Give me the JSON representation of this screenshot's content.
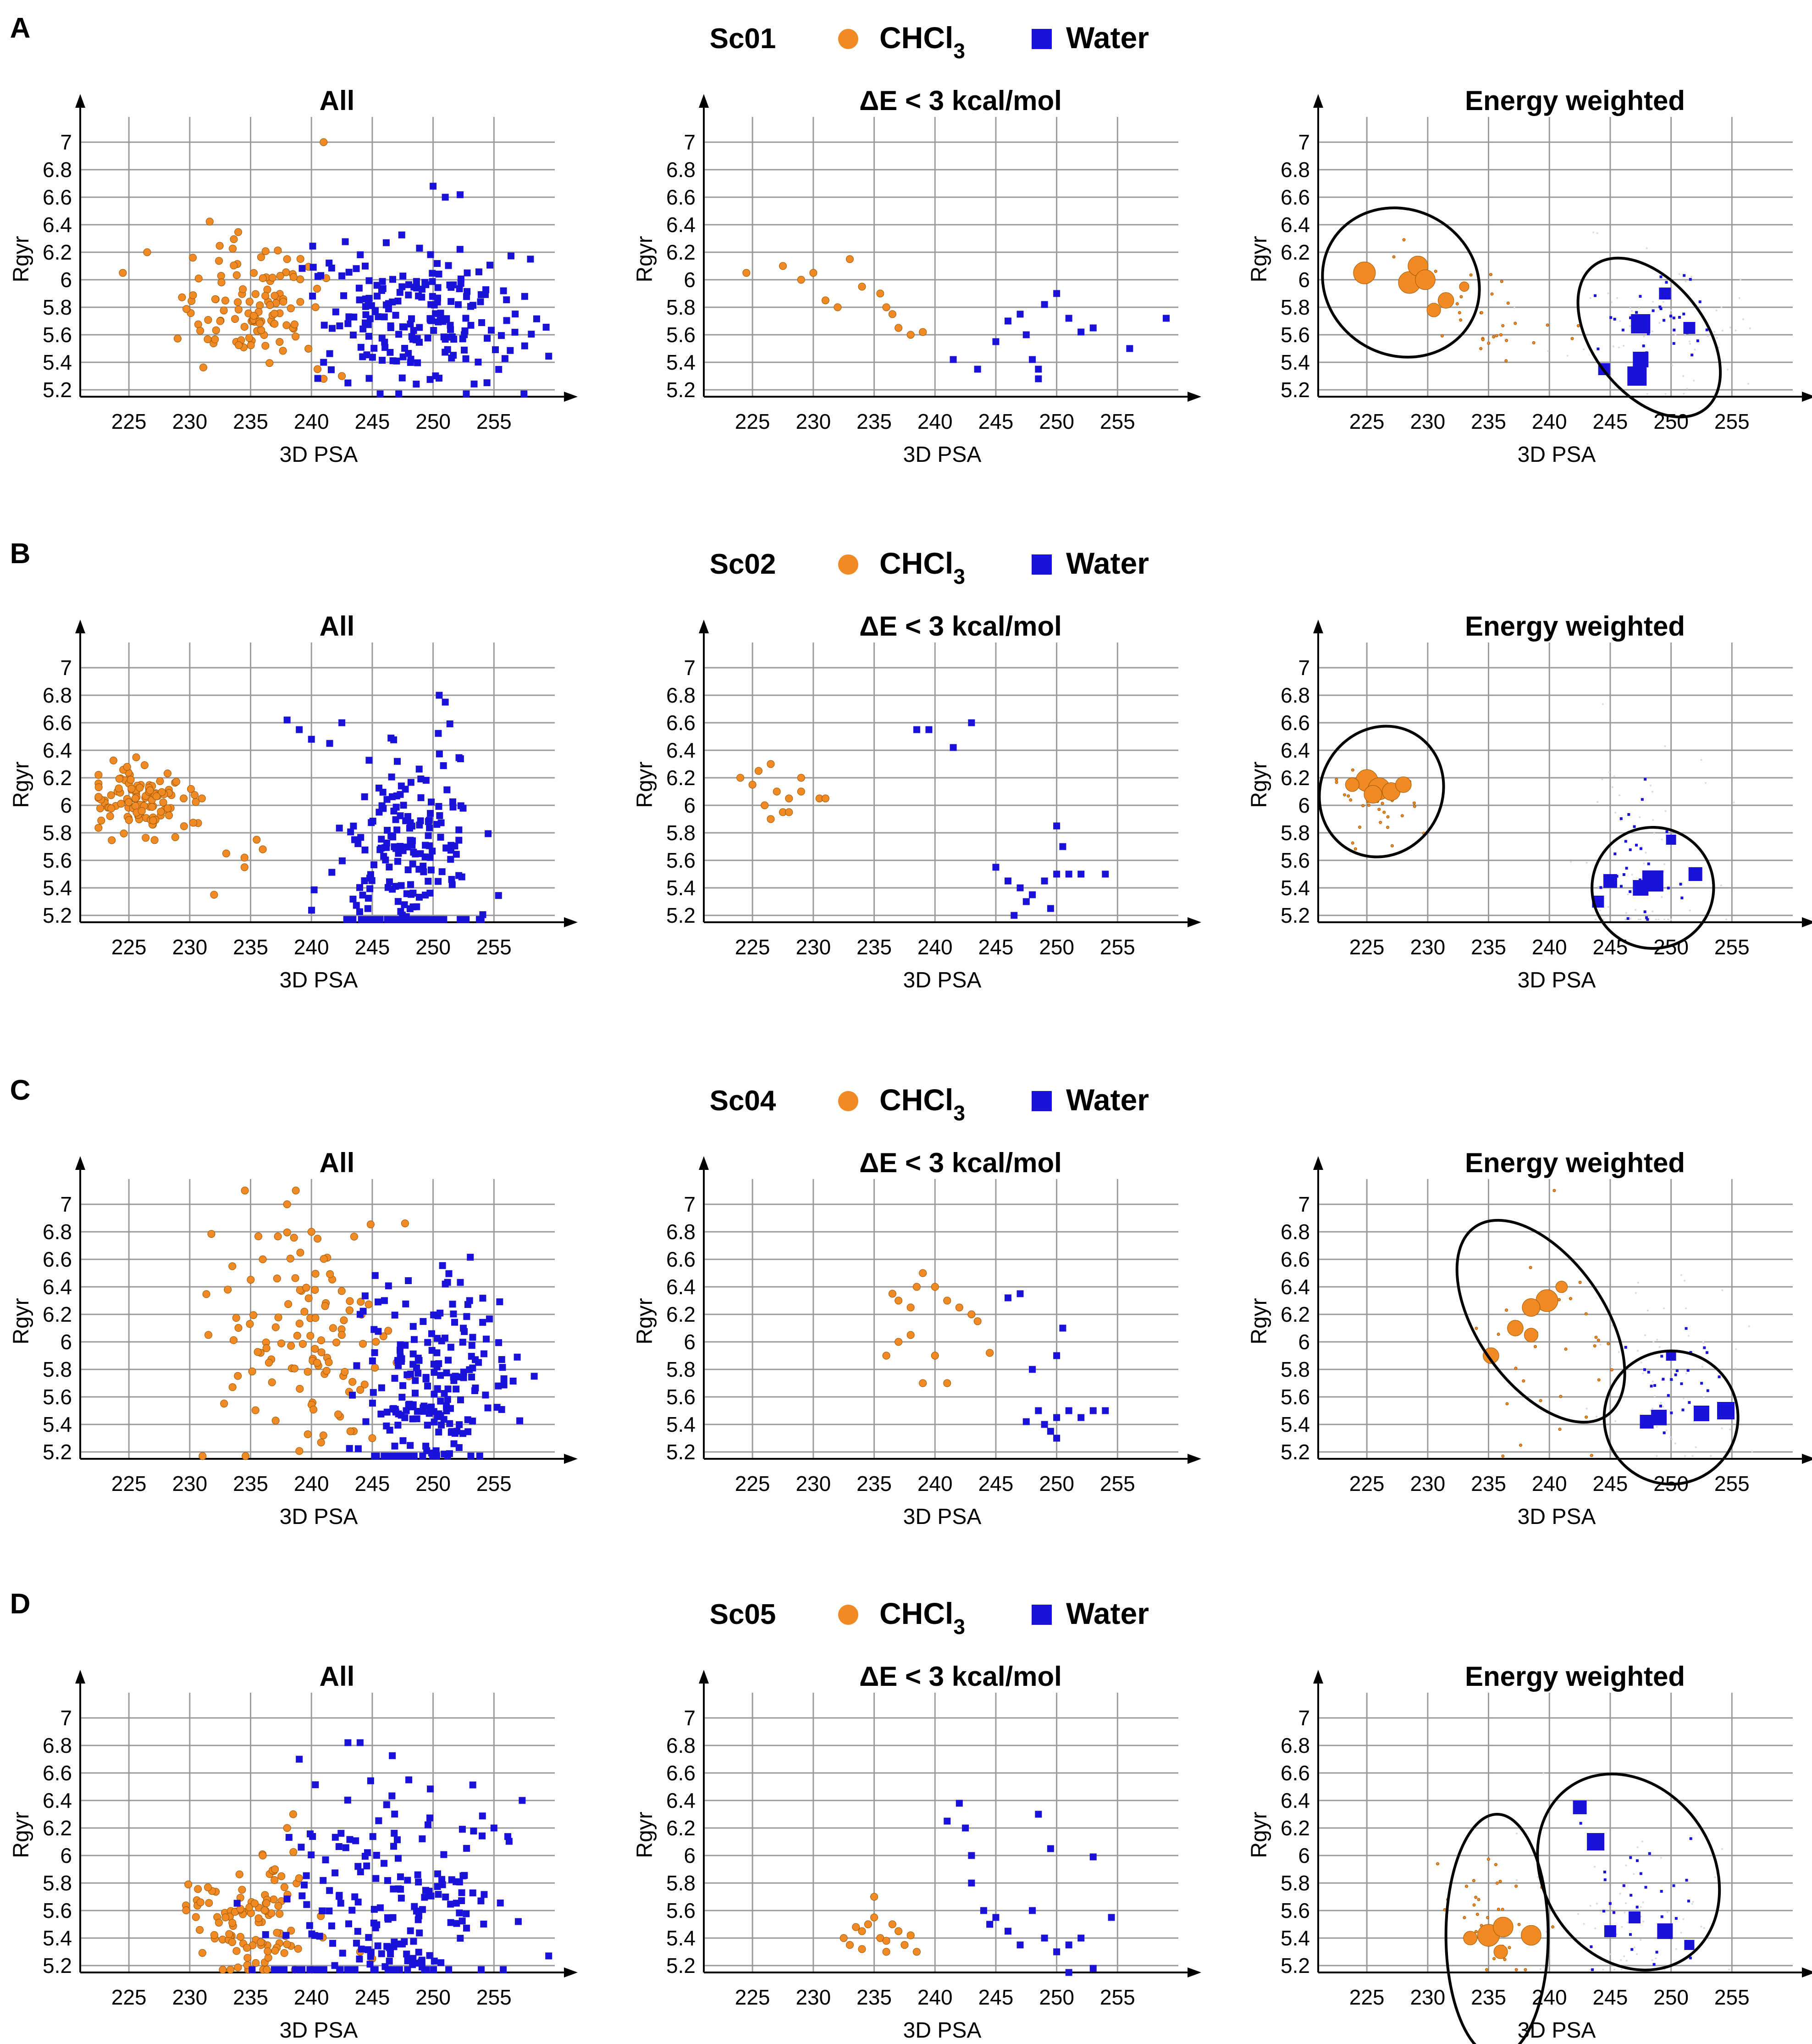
{
  "colors": {
    "chcl3": "#f08a24",
    "water": "#1a12d8",
    "chcl3_edge": "#9c5400",
    "grid": "#9a9a9a",
    "axis": "#000000"
  },
  "legend": {
    "chcl3_base": "CHCl",
    "chcl3_sub": "3",
    "water": "Water"
  },
  "axis_labels": {
    "x": "3D PSA",
    "y": "Rgyr"
  },
  "panel_titles": [
    "All",
    "ΔE < 3 kcal/mol",
    "Energy weighted"
  ],
  "chart_data": [
    {
      "panel": "A",
      "sample": "Sc01",
      "type": "scatter",
      "xlim": [
        221,
        260
      ],
      "ylim": [
        5.15,
        7.15
      ],
      "xticks": [
        225,
        230,
        235,
        240,
        245,
        250,
        255
      ],
      "yticks": [
        5.2,
        5.4,
        5.6,
        5.8,
        6,
        6.2,
        6.4,
        6.6,
        6.8,
        7
      ],
      "chcl3": {
        "center": [
          234.5,
          5.82
        ],
        "spread": [
          3.2,
          0.22
        ],
        "extra": [
          [
            241,
            7.0
          ],
          [
            226.5,
            6.2
          ],
          [
            224.5,
            6.05
          ],
          [
            238,
            6.15
          ],
          [
            240.5,
            5.35
          ],
          [
            241,
            5.28
          ],
          [
            242.5,
            5.3
          ]
        ]
      },
      "water": {
        "center": [
          249,
          5.75
        ],
        "spread": [
          4.5,
          0.28
        ],
        "extra": [
          [
            250,
            6.68
          ],
          [
            251,
            6.6
          ],
          [
            258,
            6.15
          ],
          [
            241,
            5.4
          ],
          [
            243,
            5.25
          ]
        ]
      },
      "de_chcl3": [
        [
          224.5,
          6.05
        ],
        [
          227.5,
          6.1
        ],
        [
          229,
          6.0
        ],
        [
          230,
          6.05
        ],
        [
          233,
          6.15
        ],
        [
          234,
          5.95
        ],
        [
          235.5,
          5.9
        ],
        [
          236.5,
          5.75
        ],
        [
          237,
          5.65
        ],
        [
          238,
          5.6
        ],
        [
          239,
          5.62
        ],
        [
          232,
          5.8
        ],
        [
          231,
          5.85
        ],
        [
          236,
          5.8
        ]
      ],
      "de_water": [
        [
          241.5,
          5.42
        ],
        [
          243.5,
          5.35
        ],
        [
          245,
          5.55
        ],
        [
          246,
          5.7
        ],
        [
          247.5,
          5.6
        ],
        [
          248,
          5.42
        ],
        [
          248.5,
          5.35
        ],
        [
          249,
          5.82
        ],
        [
          250,
          5.9
        ],
        [
          251,
          5.72
        ],
        [
          252,
          5.62
        ],
        [
          253,
          5.65
        ],
        [
          256,
          5.5
        ],
        [
          259,
          5.72
        ],
        [
          248.5,
          5.28
        ],
        [
          247,
          5.75
        ]
      ],
      "ew_chcl3": [
        [
          224.8,
          6.05,
          4
        ],
        [
          228.5,
          5.98,
          4
        ],
        [
          229.2,
          6.1,
          3.5
        ],
        [
          229.8,
          6.0,
          3.5
        ],
        [
          231.5,
          5.85,
          2.5
        ],
        [
          230.5,
          5.78,
          2
        ],
        [
          233,
          5.95,
          1
        ]
      ],
      "ew_water": [
        [
          247.5,
          5.68,
          4
        ],
        [
          247.2,
          5.3,
          4
        ],
        [
          247.5,
          5.42,
          3
        ],
        [
          249.5,
          5.9,
          2
        ],
        [
          251.5,
          5.65,
          2
        ],
        [
          244.5,
          5.35,
          2
        ]
      ],
      "ellipses": [
        {
          "c": [
            227.8,
            5.98
          ],
          "rx": 6.6,
          "ry": 0.24,
          "rot": 30
        },
        {
          "c": [
            248.2,
            5.58
          ],
          "rx": 4.6,
          "ry": 0.3,
          "rot": -38
        }
      ]
    },
    {
      "panel": "B",
      "sample": "Sc02",
      "type": "scatter",
      "xlim": [
        221,
        260
      ],
      "ylim": [
        5.15,
        7.15
      ],
      "xticks": [
        225,
        230,
        235,
        240,
        245,
        250,
        255
      ],
      "yticks": [
        5.2,
        5.4,
        5.6,
        5.8,
        6,
        6.2,
        6.4,
        6.6,
        6.8,
        7
      ],
      "chcl3": {
        "center": [
          226,
          6.02
        ],
        "spread": [
          2.2,
          0.12
        ],
        "extra": [
          [
            229.5,
            6.05
          ],
          [
            231,
            6.05
          ],
          [
            233,
            5.65
          ],
          [
            234.5,
            5.62
          ],
          [
            235.5,
            5.75
          ],
          [
            236,
            5.68
          ],
          [
            232,
            5.35
          ],
          [
            234.5,
            5.55
          ]
        ]
      },
      "water": {
        "center": [
          248,
          5.55
        ],
        "spread": [
          3.0,
          0.42
        ],
        "extra": [
          [
            238,
            6.62
          ],
          [
            239,
            6.55
          ],
          [
            240,
            6.48
          ],
          [
            241.5,
            6.45
          ],
          [
            242.5,
            6.6
          ],
          [
            250.5,
            6.8
          ],
          [
            251,
            6.75
          ]
        ]
      },
      "de_chcl3": [
        [
          224,
          6.2
        ],
        [
          225.5,
          6.25
        ],
        [
          226.5,
          6.3
        ],
        [
          227,
          6.1
        ],
        [
          228,
          6.05
        ],
        [
          229,
          6.2
        ],
        [
          229,
          6.1
        ],
        [
          227.5,
          5.95
        ],
        [
          226.5,
          5.9
        ],
        [
          228,
          5.95
        ],
        [
          230.5,
          6.05
        ],
        [
          231,
          6.05
        ],
        [
          225,
          6.15
        ],
        [
          226,
          6.0
        ]
      ],
      "de_water": [
        [
          238.5,
          6.55
        ],
        [
          239.5,
          6.55
        ],
        [
          241.5,
          6.42
        ],
        [
          243,
          6.6
        ],
        [
          245,
          5.55
        ],
        [
          246,
          5.45
        ],
        [
          247,
          5.4
        ],
        [
          247.5,
          5.3
        ],
        [
          248,
          5.35
        ],
        [
          249,
          5.45
        ],
        [
          250,
          5.5
        ],
        [
          250,
          5.85
        ],
        [
          250.5,
          5.7
        ],
        [
          251,
          5.5
        ],
        [
          252,
          5.5
        ],
        [
          254,
          5.5
        ],
        [
          246.5,
          5.2
        ],
        [
          249.5,
          5.25
        ]
      ],
      "ew_chcl3": [
        [
          225,
          6.18,
          4
        ],
        [
          226,
          6.12,
          4
        ],
        [
          227,
          6.1,
          3
        ],
        [
          225.5,
          6.08,
          3
        ],
        [
          228,
          6.15,
          2.5
        ],
        [
          223.8,
          6.15,
          2
        ]
      ],
      "ew_water": [
        [
          248.5,
          5.45,
          4.5
        ],
        [
          247.5,
          5.4,
          3
        ],
        [
          252,
          5.5,
          2.5
        ],
        [
          245,
          5.45,
          2.5
        ],
        [
          250,
          5.75,
          1.5
        ],
        [
          244,
          5.3,
          2
        ]
      ],
      "ellipses": [
        {
          "c": [
            226.2,
            6.1
          ],
          "rx": 5.0,
          "ry": 0.22,
          "rot": 28
        },
        {
          "c": [
            248.5,
            5.4
          ],
          "rx": 5.0,
          "ry": 0.2,
          "rot": -12
        }
      ]
    },
    {
      "panel": "C",
      "sample": "Sc04",
      "type": "scatter",
      "xlim": [
        221,
        260
      ],
      "ylim": [
        5.15,
        7.15
      ],
      "xticks": [
        225,
        230,
        235,
        240,
        245,
        250,
        255
      ],
      "yticks": [
        5.2,
        5.4,
        5.6,
        5.8,
        6,
        6.2,
        6.4,
        6.6,
        6.8,
        7
      ],
      "chcl3": {
        "center": [
          239.5,
          6.05
        ],
        "spread": [
          3.5,
          0.42
        ],
        "extra": [
          [
            238,
            7.0
          ],
          [
            240,
            6.8
          ],
          [
            240.5,
            6.75
          ],
          [
            233.5,
            6.55
          ],
          [
            236,
            6.6
          ],
          [
            247,
            5.85
          ],
          [
            248,
            5.75
          ],
          [
            245,
            5.3
          ]
        ]
      },
      "water": {
        "center": [
          250,
          5.65
        ],
        "spread": [
          3.0,
          0.38
        ],
        "extra": [
          [
            246,
            6.3
          ],
          [
            251,
            6.42
          ],
          [
            253,
            6.3
          ],
          [
            254.5,
            5.52
          ],
          [
            244,
            6.2
          ]
        ]
      },
      "de_chcl3": [
        [
          236.5,
          6.35
        ],
        [
          237,
          6.3
        ],
        [
          238,
          6.25
        ],
        [
          238.5,
          6.4
        ],
        [
          239,
          6.5
        ],
        [
          240,
          6.4
        ],
        [
          241,
          6.3
        ],
        [
          242,
          6.25
        ],
        [
          243,
          6.2
        ],
        [
          243.5,
          6.15
        ],
        [
          238,
          6.05
        ],
        [
          237,
          6.0
        ],
        [
          236,
          5.9
        ],
        [
          240,
          5.9
        ],
        [
          239,
          5.7
        ],
        [
          241,
          5.7
        ],
        [
          244.5,
          5.92
        ]
      ],
      "de_water": [
        [
          246,
          6.32
        ],
        [
          247,
          6.35
        ],
        [
          248,
          5.8
        ],
        [
          248.5,
          5.5
        ],
        [
          249,
          5.4
        ],
        [
          249.5,
          5.35
        ],
        [
          250,
          5.45
        ],
        [
          250.5,
          6.1
        ],
        [
          250,
          5.9
        ],
        [
          251,
          5.5
        ],
        [
          252,
          5.45
        ],
        [
          253,
          5.5
        ],
        [
          254,
          5.5
        ],
        [
          247.5,
          5.42
        ],
        [
          250,
          5.3
        ]
      ],
      "ew_chcl3": [
        [
          239.8,
          6.3,
          4
        ],
        [
          238.5,
          6.25,
          3
        ],
        [
          237.2,
          6.1,
          2.5
        ],
        [
          235.2,
          5.9,
          2.5
        ],
        [
          238.5,
          6.05,
          2
        ],
        [
          241,
          6.4,
          1.5
        ]
      ],
      "ew_water": [
        [
          254.5,
          5.5,
          3.5
        ],
        [
          252.5,
          5.48,
          3
        ],
        [
          249,
          5.45,
          3
        ],
        [
          248,
          5.42,
          2.5
        ],
        [
          250,
          5.9,
          1.5
        ]
      ],
      "ellipses": [
        {
          "c": [
            239.3,
            6.15
          ],
          "rx": 5.2,
          "ry": 0.38,
          "rot": -35
        },
        {
          "c": [
            250,
            5.45
          ],
          "rx": 5.5,
          "ry": 0.22,
          "rot": -12
        }
      ]
    },
    {
      "panel": "D",
      "sample": "Sc05",
      "type": "scatter",
      "xlim": [
        221,
        260
      ],
      "ylim": [
        5.15,
        7.15
      ],
      "xticks": [
        225,
        230,
        235,
        240,
        245,
        250,
        255
      ],
      "yticks": [
        5.2,
        5.4,
        5.6,
        5.8,
        6,
        6.2,
        6.4,
        6.6,
        6.8,
        7
      ],
      "chcl3": {
        "center": [
          235,
          5.5
        ],
        "spread": [
          2.5,
          0.22
        ],
        "extra": [
          [
            236,
            6.0
          ],
          [
            237,
            5.9
          ],
          [
            238,
            6.2
          ],
          [
            238.5,
            6.3
          ],
          [
            245,
            5.25
          ],
          [
            244,
            5.3
          ]
        ]
      },
      "water": {
        "center": [
          247,
          5.6
        ],
        "spread": [
          4.5,
          0.4
        ],
        "extra": [
          [
            243,
            6.82
          ],
          [
            244,
            6.82
          ],
          [
            239,
            6.7
          ],
          [
            248,
            6.55
          ],
          [
            255,
            6.2
          ],
          [
            257,
            5.52
          ]
        ]
      },
      "de_chcl3": [
        [
          232.5,
          5.4
        ],
        [
          233,
          5.35
        ],
        [
          234,
          5.45
        ],
        [
          234.5,
          5.5
        ],
        [
          235,
          5.55
        ],
        [
          235.5,
          5.4
        ],
        [
          236,
          5.38
        ],
        [
          236.5,
          5.5
        ],
        [
          237,
          5.45
        ],
        [
          237.5,
          5.35
        ],
        [
          238,
          5.42
        ],
        [
          235,
          5.7
        ],
        [
          236,
          5.3
        ],
        [
          234,
          5.32
        ],
        [
          238.5,
          5.3
        ],
        [
          233.5,
          5.48
        ]
      ],
      "de_water": [
        [
          241,
          6.25
        ],
        [
          242,
          6.38
        ],
        [
          242.5,
          6.2
        ],
        [
          243,
          6.0
        ],
        [
          243,
          5.8
        ],
        [
          244,
          5.6
        ],
        [
          244.5,
          5.5
        ],
        [
          245,
          5.55
        ],
        [
          246,
          5.45
        ],
        [
          247,
          5.35
        ],
        [
          248,
          5.6
        ],
        [
          249,
          5.4
        ],
        [
          250,
          5.3
        ],
        [
          251,
          5.35
        ],
        [
          252,
          5.4
        ],
        [
          253,
          5.99
        ],
        [
          254.5,
          5.55
        ],
        [
          251,
          5.15
        ],
        [
          253,
          5.18
        ],
        [
          248.5,
          6.3
        ],
        [
          249.5,
          6.05
        ]
      ],
      "ew_chcl3": [
        [
          235,
          5.42,
          4
        ],
        [
          236.2,
          5.48,
          3.5
        ],
        [
          238.5,
          5.42,
          3.5
        ],
        [
          233.5,
          5.4,
          2
        ],
        [
          236,
          5.3,
          2
        ]
      ],
      "ew_water": [
        [
          243.8,
          6.1,
          3.5
        ],
        [
          242.5,
          6.35,
          2.5
        ],
        [
          249.5,
          5.45,
          3
        ],
        [
          247,
          5.55,
          2
        ],
        [
          245,
          5.45,
          2
        ],
        [
          251.5,
          5.35,
          1.5
        ]
      ],
      "ellipses": [
        {
          "c": [
            235.7,
            5.42
          ],
          "rx": 4.2,
          "ry": 0.4,
          "rot": 0
        },
        {
          "c": [
            246.5,
            5.88
          ],
          "rx": 8.5,
          "ry": 0.28,
          "rot": 56
        }
      ]
    }
  ]
}
